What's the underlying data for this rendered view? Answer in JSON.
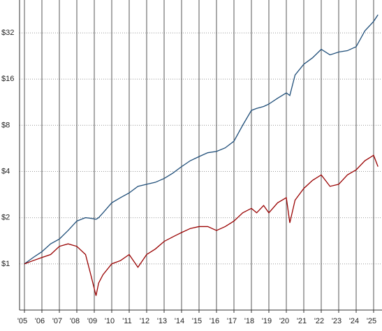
{
  "chart_data": {
    "type": "line",
    "ylog": true,
    "grid": true,
    "x": [
      2005,
      2005.5,
      2006,
      2006.5,
      2007,
      2007.5,
      2008,
      2008.5,
      2008.8,
      2009.1,
      2009.25,
      2009.5,
      2010,
      2010.5,
      2011,
      2011.5,
      2012,
      2012.5,
      2013,
      2013.5,
      2014,
      2014.5,
      2015,
      2015.5,
      2016,
      2016.5,
      2017,
      2017.5,
      2018,
      2018.3,
      2018.7,
      2019,
      2019.5,
      2020,
      2020.2,
      2020.5,
      2021,
      2021.5,
      2022,
      2022.5,
      2023,
      2023.5,
      2024,
      2024.5,
      2025,
      2025.25
    ],
    "series": [
      {
        "color": "#1f4e79",
        "values": [
          1.0,
          1.1,
          1.2,
          1.35,
          1.45,
          1.65,
          1.9,
          2.0,
          1.98,
          1.95,
          2.0,
          2.15,
          2.5,
          2.7,
          2.9,
          3.2,
          3.3,
          3.4,
          3.6,
          3.9,
          4.3,
          4.7,
          5.0,
          5.3,
          5.4,
          5.7,
          6.3,
          8.0,
          10.0,
          10.3,
          10.6,
          11,
          12,
          13,
          12.5,
          17,
          20,
          22,
          25,
          23,
          24,
          24.5,
          26,
          33,
          38,
          42
        ]
      },
      {
        "color": "#990000",
        "values": [
          1.0,
          1.05,
          1.1,
          1.15,
          1.3,
          1.35,
          1.3,
          1.15,
          0.85,
          0.62,
          0.75,
          0.85,
          1.0,
          1.05,
          1.15,
          0.95,
          1.15,
          1.25,
          1.4,
          1.5,
          1.6,
          1.7,
          1.75,
          1.75,
          1.65,
          1.75,
          1.9,
          2.15,
          2.3,
          2.15,
          2.4,
          2.15,
          2.5,
          2.7,
          1.85,
          2.6,
          3.1,
          3.5,
          3.8,
          3.2,
          3.3,
          3.8,
          4.1,
          4.7,
          5.1,
          4.3
        ]
      }
    ],
    "xlim": [
      2004.72,
      2025.48
    ],
    "xticks": [
      {
        "value": 2005,
        "label": "'05"
      },
      {
        "value": 2006,
        "label": "'06"
      },
      {
        "value": 2007,
        "label": "'07"
      },
      {
        "value": 2008,
        "label": "'08"
      },
      {
        "value": 2009,
        "label": "'09"
      },
      {
        "value": 2010,
        "label": "'10"
      },
      {
        "value": 2011,
        "label": "'11"
      },
      {
        "value": 2012,
        "label": "'12"
      },
      {
        "value": 2013,
        "label": "'13"
      },
      {
        "value": 2014,
        "label": "'14"
      },
      {
        "value": 2015,
        "label": "'15"
      },
      {
        "value": 2016,
        "label": "'16"
      },
      {
        "value": 2017,
        "label": "'17"
      },
      {
        "value": 2018,
        "label": "'18"
      },
      {
        "value": 2019,
        "label": "'19"
      },
      {
        "value": 2020,
        "label": "'20"
      },
      {
        "value": 2021,
        "label": "'21"
      },
      {
        "value": 2022,
        "label": "'22"
      },
      {
        "value": 2023,
        "label": "'23"
      },
      {
        "value": 2024,
        "label": "'24"
      },
      {
        "value": 2025,
        "label": "'25"
      }
    ],
    "ylim": [
      0.5,
      52.4
    ],
    "yticks": [
      {
        "value": 1,
        "label": "$1"
      },
      {
        "value": 2,
        "label": "$2"
      },
      {
        "value": 4,
        "label": "$4"
      },
      {
        "value": 8,
        "label": "$8"
      },
      {
        "value": 16,
        "label": "$16"
      },
      {
        "value": 32,
        "label": "$32"
      }
    ]
  }
}
